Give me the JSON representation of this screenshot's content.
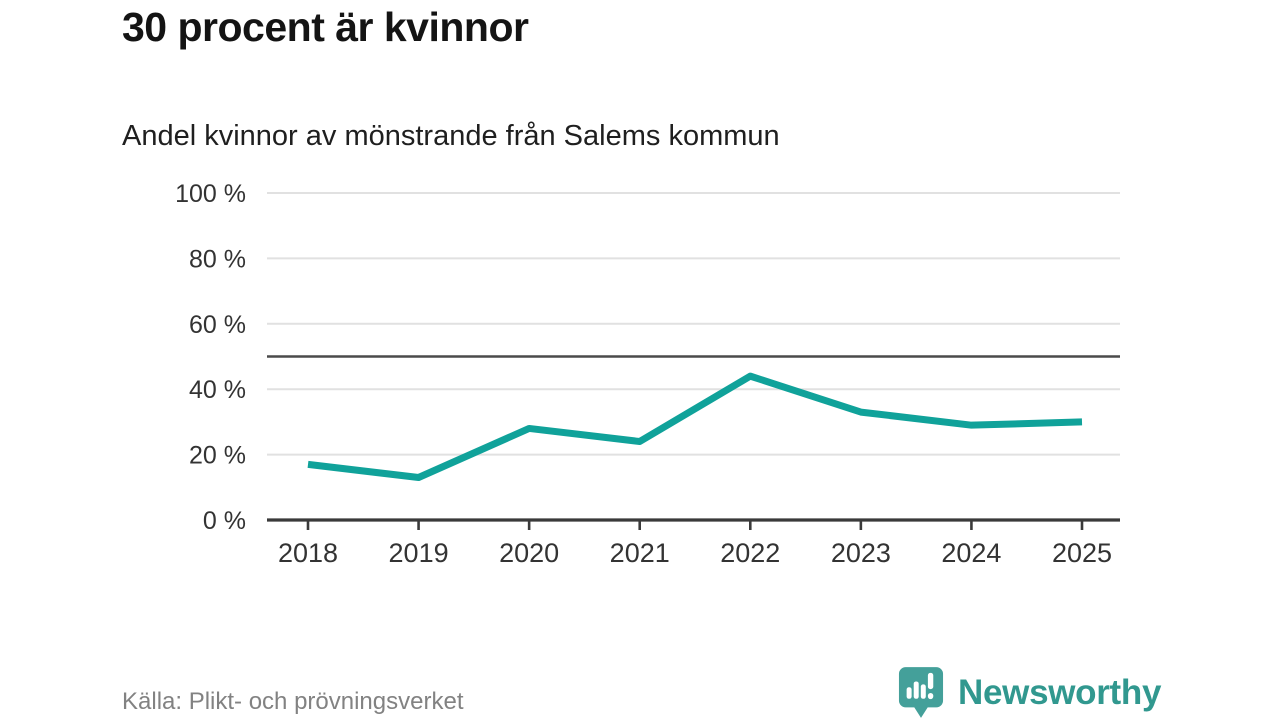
{
  "header": {
    "title": "30 procent är kvinnor",
    "subtitle": "Andel kvinnor av mönstrande från Salems kommun"
  },
  "chart_data": {
    "type": "line",
    "title": "30 procent är kvinnor",
    "subtitle": "Andel kvinnor av mönstrande från Salems kommun",
    "x": [
      "2018",
      "2019",
      "2020",
      "2021",
      "2022",
      "2023",
      "2024",
      "2025"
    ],
    "series": [
      {
        "name": "Andel kvinnor av mönstrande",
        "values": [
          17,
          13,
          28,
          24,
          44,
          33,
          29,
          30
        ]
      }
    ],
    "unit": "%",
    "ylim": [
      0,
      100
    ],
    "yticks": [
      0,
      20,
      40,
      60,
      80,
      100
    ],
    "ytick_suffix": " %",
    "reference_line": {
      "value": 50
    },
    "grid": true,
    "legend_position": "none",
    "xlabel": "",
    "ylabel": ""
  },
  "footer": {
    "source": "Källa: Plikt- och prövningsverket",
    "brand": {
      "name": "Newsworthy"
    }
  },
  "colors": {
    "accent": "#10a29a",
    "reference": "#4a4a4a",
    "grid": "#e1e1e1",
    "axis": "#3a3a3a",
    "tick_label": "#333333",
    "title": "#141414",
    "source_text": "#828282",
    "brand_icon": "#44a09a",
    "brand_text": "#31988f"
  }
}
